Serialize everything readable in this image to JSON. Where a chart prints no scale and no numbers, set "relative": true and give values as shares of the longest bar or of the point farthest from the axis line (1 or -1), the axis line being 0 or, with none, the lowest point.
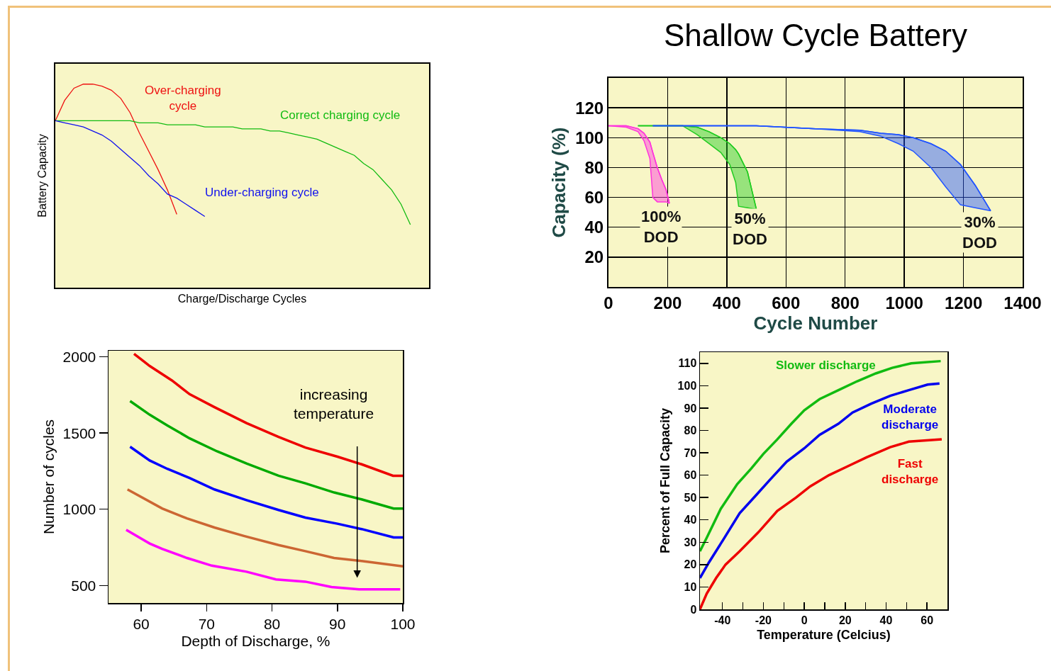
{
  "chart_data": [
    {
      "type": "line",
      "relative": true,
      "xlabel": "Charge/Discharge Cycles",
      "ylabel": "Battery Capacity",
      "categories": [
        null,
        null,
        null,
        null,
        null,
        null,
        null,
        null,
        null,
        null,
        null,
        null,
        null,
        null,
        null,
        null,
        null,
        null,
        null,
        null,
        null,
        null,
        null,
        null,
        null,
        null,
        null,
        null,
        null,
        null,
        null,
        null,
        null,
        null,
        null,
        null,
        null,
        null,
        null,
        null,
        null
      ],
      "series": [
        {
          "name": "Over-charging\ncycle",
          "color": "#ee1111",
          "values": [
            0.82,
            0.92,
            0.98,
            1.0,
            1.0,
            0.99,
            0.97,
            0.93,
            0.86,
            0.76,
            0.67,
            0.58,
            0.48,
            0.36,
            null,
            null,
            null,
            null,
            null,
            null,
            null,
            null,
            null,
            null,
            null,
            null,
            null,
            null,
            null,
            null,
            null,
            null,
            null,
            null,
            null,
            null,
            null,
            null,
            null,
            null,
            null
          ]
        },
        {
          "name": "Correct charging cycle",
          "color": "#11bb11",
          "values": [
            0.82,
            0.82,
            0.82,
            0.82,
            0.82,
            0.82,
            0.82,
            0.82,
            0.82,
            0.81,
            0.81,
            0.81,
            0.8,
            0.8,
            0.8,
            0.8,
            0.79,
            0.79,
            0.79,
            0.79,
            0.78,
            0.78,
            0.78,
            0.77,
            0.77,
            0.76,
            0.75,
            0.74,
            0.73,
            0.71,
            0.69,
            0.67,
            0.65,
            0.61,
            0.58,
            0.53,
            0.48,
            0.41,
            0.31,
            null,
            null
          ]
        },
        {
          "name": "Under-charging cycle",
          "color": "#1111ee",
          "values": [
            0.82,
            0.81,
            0.8,
            0.79,
            0.77,
            0.75,
            0.72,
            0.68,
            0.64,
            0.6,
            0.55,
            0.51,
            0.46,
            0.44,
            0.41,
            0.38,
            0.35,
            null,
            null,
            null,
            null,
            null,
            null,
            null,
            null,
            null,
            null,
            null,
            null,
            null,
            null,
            null,
            null,
            null,
            null,
            null,
            null,
            null,
            null,
            null,
            null
          ]
        }
      ]
    },
    {
      "type": "line",
      "title": "Shallow Cycle Battery",
      "xlabel": "Cycle Number",
      "ylabel": "Capacity (%)",
      "xlim": [
        0,
        1400
      ],
      "xticks": [
        0,
        200,
        400,
        600,
        800,
        1000,
        1200,
        1400
      ],
      "ylim": [
        0,
        140
      ],
      "yticks": [
        20,
        40,
        60,
        80,
        100,
        120
      ],
      "grid": true,
      "series": [
        {
          "name": "100%\nDOD",
          "color": "#ff33dd",
          "x": [
            0,
            60,
            100,
            120,
            140,
            150,
            165,
            180,
            195,
            206
          ],
          "values": [
            108,
            108,
            106,
            103,
            97,
            90,
            80,
            72,
            65,
            56
          ],
          "upper": [
            108,
            108,
            106,
            103,
            97,
            90,
            80,
            72,
            65,
            56
          ],
          "lower": [
            108,
            107,
            104,
            98,
            86,
            60,
            57,
            57,
            57,
            56
          ]
        },
        {
          "name": "50%\nDOD",
          "color": "#22cc22",
          "x": [
            100,
            250,
            300,
            340,
            380,
            410,
            430,
            440,
            470,
            500
          ],
          "values": [
            108,
            108,
            107,
            104,
            100,
            96,
            92,
            89,
            77,
            52
          ],
          "upper": [
            108,
            108,
            107,
            104,
            100,
            96,
            92,
            89,
            77,
            52
          ],
          "lower": [
            108,
            108,
            102,
            96,
            90,
            82,
            70,
            54,
            53,
            52
          ]
        },
        {
          "name": "30%\nDOD",
          "color": "#2255ff",
          "x": [
            150,
            500,
            700,
            850,
            920,
            980,
            1030,
            1090,
            1140,
            1190,
            1240,
            1292
          ],
          "values": [
            108,
            108,
            106,
            105,
            103,
            102,
            100,
            96,
            91,
            82,
            68,
            51
          ],
          "upper": [
            108,
            108,
            106,
            105,
            103,
            102,
            100,
            96,
            91,
            82,
            68,
            51
          ],
          "lower": [
            108,
            108,
            106,
            104,
            101,
            96,
            91,
            80,
            67,
            55,
            53,
            51
          ]
        }
      ]
    },
    {
      "type": "line",
      "xlabel": "Depth of Discharge, %",
      "ylabel": "Number of cycles",
      "xlim": [
        55,
        100
      ],
      "xticks": [
        60,
        70,
        80,
        90,
        100
      ],
      "ylim": [
        385,
        2040
      ],
      "yticks": [
        500,
        1000,
        1500,
        2000
      ],
      "annotations": [
        "increasing\ntemperature"
      ],
      "series": [
        {
          "color": "#ee0000",
          "x": [
            58.9,
            61.3,
            64.7,
            67.4,
            71.2,
            76.1,
            81,
            85.1,
            90,
            93.7,
            98.5,
            100
          ],
          "values": [
            2020,
            1940,
            1845,
            1755,
            1670,
            1565,
            1475,
            1405,
            1345,
            1295,
            1220,
            1220
          ]
        },
        {
          "color": "#00aa00",
          "x": [
            58.3,
            61.3,
            64,
            67.4,
            71.6,
            76.1,
            81,
            85.1,
            89.5,
            93.7,
            98.6,
            100
          ],
          "values": [
            1710,
            1620,
            1550,
            1465,
            1380,
            1300,
            1220,
            1170,
            1110,
            1065,
            1005,
            1005
          ]
        },
        {
          "color": "#0000ff",
          "x": [
            58.3,
            61.3,
            64,
            67.4,
            71.2,
            76.1,
            81,
            85.1,
            90,
            93.7,
            98.6,
            100
          ],
          "values": [
            1410,
            1320,
            1265,
            1205,
            1130,
            1060,
            995,
            945,
            905,
            870,
            815,
            815
          ]
        },
        {
          "color": "#cc6633",
          "x": [
            57.9,
            63.2,
            67,
            71.2,
            75.7,
            81,
            85.1,
            89.5,
            93.7,
            100
          ],
          "values": [
            1130,
            1005,
            940,
            880,
            825,
            765,
            725,
            680,
            660,
            625
          ]
        },
        {
          "color": "#ff00ff",
          "x": [
            57.7,
            61.3,
            63.2,
            67,
            70.8,
            76.1,
            80.6,
            85.1,
            89.1,
            93.3,
            99.6
          ],
          "values": [
            865,
            775,
            740,
            680,
            630,
            590,
            540,
            525,
            490,
            475,
            475
          ]
        }
      ]
    },
    {
      "type": "line",
      "xlabel": "Temperature (Celcius)",
      "ylabel": "Percent of Full Capacity",
      "xlim": [
        -51,
        70
      ],
      "xticks": [
        -40,
        {
          "value": -30,
          "label": null
        },
        -20,
        {
          "value": -10,
          "label": null
        },
        0,
        {
          "value": 10,
          "label": null
        },
        20,
        {
          "value": 30,
          "label": null
        },
        40,
        {
          "value": 50,
          "label": null
        },
        60
      ],
      "ylim": [
        0,
        115
      ],
      "yticks": [
        0,
        10,
        20,
        30,
        40,
        50,
        60,
        70,
        80,
        90,
        100,
        110
      ],
      "series": [
        {
          "name": "Slower discharge",
          "color": "#11bb11",
          "x": [
            -51,
            -47.7,
            -40.8,
            -32.8,
            -25.9,
            -20,
            -13.2,
            -6.3,
            0,
            7.5,
            16.7,
            25.9,
            35,
            43,
            52.3,
            66.7
          ],
          "values": [
            26,
            32,
            45,
            56,
            63,
            69.5,
            76,
            83,
            89,
            94,
            98,
            102,
            105.5,
            108,
            110,
            111
          ]
        },
        {
          "name": "Moderate\ndischarge",
          "color": "#0000ee",
          "x": [
            -51,
            -46.6,
            -39.7,
            -31.6,
            -23.6,
            -16.7,
            -8.6,
            0,
            7.5,
            16.7,
            23.6,
            32.8,
            42,
            51.1,
            60.3,
            66.1
          ],
          "values": [
            14,
            21,
            31,
            43,
            51,
            58,
            66,
            72,
            78,
            83,
            88,
            92,
            95.5,
            98,
            100.5,
            101
          ]
        },
        {
          "name": "Fast\ndischarge",
          "color": "#ee0000",
          "x": [
            -51,
            -47.7,
            -43.1,
            -38.5,
            -31.6,
            -22.4,
            -13.2,
            -4,
            2.9,
            12.1,
            21.3,
            30.5,
            42,
            51.1,
            67.2
          ],
          "values": [
            0,
            7,
            14,
            20,
            26,
            34.5,
            44,
            50,
            55,
            60,
            64,
            68,
            72.5,
            75,
            76
          ]
        }
      ]
    }
  ]
}
